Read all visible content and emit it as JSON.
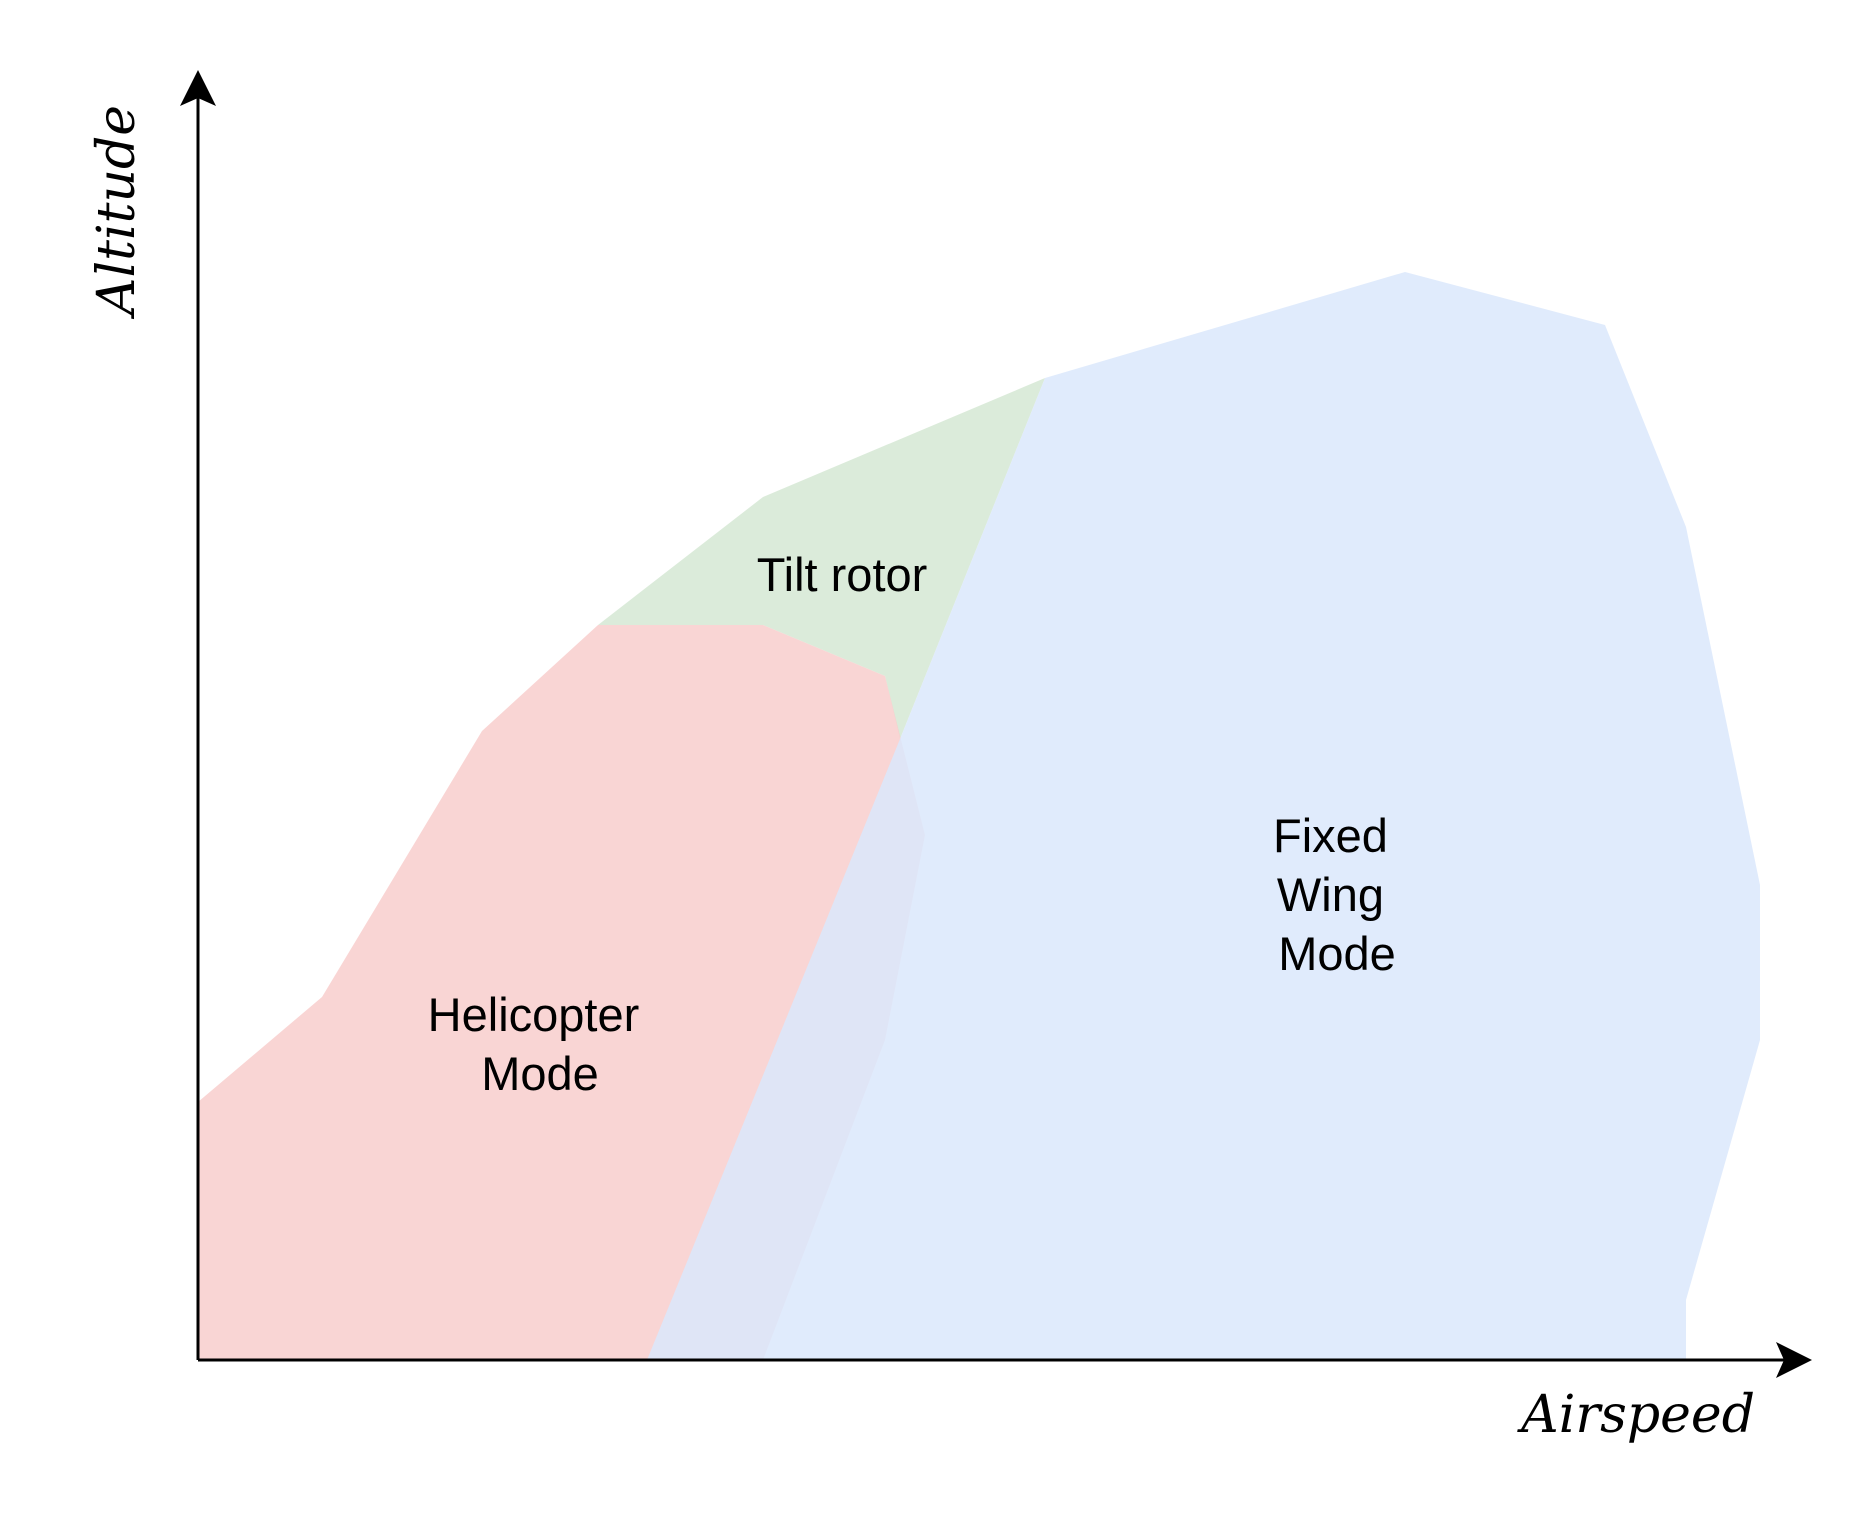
{
  "axes": {
    "x_label": "Airspeed",
    "y_label": "Altitude",
    "axis_color": "#000000"
  },
  "regions": {
    "helicopter": {
      "label_lines": [
        "Helicopter",
        "Mode"
      ],
      "fill": "#f8cecc"
    },
    "tilt_rotor": {
      "label_lines": [
        "Tilt rotor"
      ],
      "fill": "#d5e8d4"
    },
    "fixed_wing": {
      "label_lines": [
        "Fixed",
        "Wing",
        "Mode"
      ],
      "fill": "#dae8fc"
    }
  }
}
